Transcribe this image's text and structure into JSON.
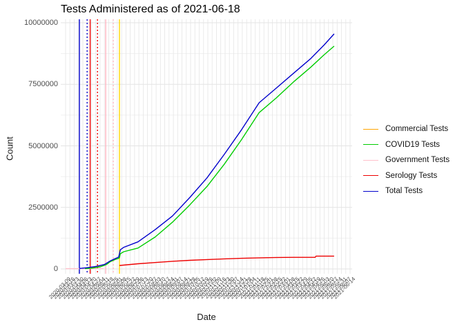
{
  "title": "Tests Administered as of 2021-06-18",
  "colors": {
    "background": "#FFFFFF",
    "grid_major": "#E3E3E3",
    "grid_minor": "#F0F0F0",
    "grid_vertical": "#E5E5E5",
    "axis_text": "#4D4D4D",
    "title_text": "#000000",
    "commercial": "#FFA500",
    "covid19": "#00CD00",
    "government": "#FFC0CB",
    "serology": "#EE0000",
    "total": "#0000CC",
    "vline_gold": "#FFD700"
  },
  "legend": {
    "items": [
      {
        "label": "Commercial Tests",
        "color": "#FFA500"
      },
      {
        "label": "COVID19 Tests",
        "color": "#00CD00"
      },
      {
        "label": "Government Tests",
        "color": "#FFC0CB"
      },
      {
        "label": "Serology Tests",
        "color": "#EE0000"
      },
      {
        "label": "Total Tests",
        "color": "#0000CC"
      }
    ]
  },
  "chart_data": {
    "type": "line",
    "title": "Tests Administered as of 2021-06-18",
    "xlabel": "Date",
    "ylabel": "Count",
    "ylim": [
      0,
      10000000
    ],
    "grid": "on",
    "legend_position": "right",
    "y_ticks": [
      {
        "label": "0",
        "value": 0
      },
      {
        "label": "2500000",
        "value": 2500000
      },
      {
        "label": "5000000",
        "value": 5000000
      },
      {
        "label": "7500000",
        "value": 7500000
      },
      {
        "label": "10000000",
        "value": 10000000
      }
    ],
    "y_minor": [
      1250000,
      3750000,
      6250000,
      8750000
    ],
    "x_labels": [
      "2020-03-09",
      "2020-03-16",
      "2020-03-23",
      "2020-03-30",
      "2020-04-06",
      "2020-04-13",
      "2020-04-20",
      "2020-04-27",
      "2020-05-04",
      "2020-05-11",
      "2020-05-18",
      "2020-05-25",
      "2020-06-01",
      "2020-06-08",
      "2020-06-15",
      "2020-06-22",
      "2020-06-29",
      "2020-07-06",
      "2020-07-13",
      "2020-07-20",
      "2020-07-27",
      "2020-08-03",
      "2020-08-10",
      "2020-08-17",
      "2020-08-24",
      "2020-08-31",
      "2020-09-07",
      "2020-09-14",
      "2020-09-21",
      "2020-09-28",
      "2020-10-05",
      "2020-10-12",
      "2020-10-19",
      "2020-10-26",
      "2020-11-02",
      "2020-11-09",
      "2020-11-16",
      "2020-11-23",
      "2020-11-30",
      "2020-12-07",
      "2020-12-14",
      "2020-12-21",
      "2020-12-28",
      "2021-01-04",
      "2021-01-11",
      "2021-01-18",
      "2021-01-25",
      "2021-02-01",
      "2021-02-08",
      "2021-02-15",
      "2021-02-22",
      "2021-03-01",
      "2021-03-08",
      "2021-03-15",
      "2021-03-22",
      "2021-03-29",
      "2021-04-05",
      "2021-04-12",
      "2021-04-19",
      "2021-04-26",
      "2021-05-03",
      "2021-05-10",
      "2021-05-17",
      "2021-05-24",
      "2021-05-31",
      "2021-06-07",
      "2021-06-14"
    ],
    "vlines": [
      {
        "x_index": 3.2,
        "color": "#0000CC",
        "style": "solid"
      },
      {
        "x_index": 5.0,
        "color": "#0000CC",
        "style": "dotted"
      },
      {
        "x_index": 5.7,
        "color": "#EE0000",
        "style": "solid"
      },
      {
        "x_index": 7.4,
        "color": "#EE0000",
        "style": "dotted"
      },
      {
        "x_index": 9.3,
        "color": "#FFB6C1",
        "style": "solid"
      },
      {
        "x_index": 11.05,
        "color": "#FFB6C1",
        "style": "dotted"
      },
      {
        "x_index": 12.5,
        "color": "#FFD700",
        "style": "solid"
      }
    ],
    "series": [
      {
        "name": "Government Tests",
        "color": "#FFC0CB",
        "points": [
          [
            0,
            10000
          ],
          [
            8.8,
            10000
          ]
        ]
      },
      {
        "name": "Commercial Tests",
        "color": "#FFA500",
        "points": [
          [
            4.8,
            30000
          ],
          [
            7,
            80000
          ],
          [
            8.8,
            170000
          ]
        ]
      },
      {
        "name": "COVID19 Tests",
        "color": "#00CD00",
        "points": [
          [
            4.5,
            10000
          ],
          [
            6,
            30000
          ],
          [
            8,
            80000
          ],
          [
            9.5,
            180000
          ],
          [
            10.4,
            300000
          ],
          [
            11.5,
            380000
          ],
          [
            12.3,
            430000
          ],
          [
            12.5,
            450000
          ],
          [
            12.7,
            620000
          ],
          [
            13.5,
            700000
          ],
          [
            16.8,
            850000
          ],
          [
            20.8,
            1300000
          ],
          [
            24.8,
            1900000
          ],
          [
            28.8,
            2600000
          ],
          [
            32.8,
            3350000
          ],
          [
            36.8,
            4250000
          ],
          [
            40.8,
            5250000
          ],
          [
            44.9,
            6350000
          ],
          [
            48.9,
            6950000
          ],
          [
            52.9,
            7600000
          ],
          [
            56.9,
            8200000
          ],
          [
            60,
            8700000
          ],
          [
            62.3,
            9050000
          ]
        ]
      },
      {
        "name": "Serology Tests",
        "color": "#EE0000",
        "points": [
          [
            12.5,
            140000
          ],
          [
            16.8,
            210000
          ],
          [
            20.8,
            260000
          ],
          [
            24.8,
            310000
          ],
          [
            28.8,
            350000
          ],
          [
            32.8,
            380000
          ],
          [
            36.8,
            410000
          ],
          [
            40.8,
            430000
          ],
          [
            44.9,
            450000
          ],
          [
            48.9,
            465000
          ],
          [
            52.9,
            470000
          ],
          [
            57.9,
            470000
          ],
          [
            58.1,
            520000
          ],
          [
            62.3,
            520000
          ]
        ]
      },
      {
        "name": "Total Tests",
        "color": "#0000CC",
        "points": [
          [
            3.2,
            20000
          ],
          [
            5,
            50000
          ],
          [
            7,
            100000
          ],
          [
            9,
            180000
          ],
          [
            10.4,
            330000
          ],
          [
            11.5,
            420000
          ],
          [
            12.3,
            480000
          ],
          [
            12.7,
            780000
          ],
          [
            13.5,
            880000
          ],
          [
            16.8,
            1100000
          ],
          [
            20.8,
            1600000
          ],
          [
            24.8,
            2150000
          ],
          [
            28.8,
            2900000
          ],
          [
            32.8,
            3700000
          ],
          [
            36.8,
            4650000
          ],
          [
            40.8,
            5650000
          ],
          [
            44.9,
            6750000
          ],
          [
            48.9,
            7350000
          ],
          [
            52.9,
            7950000
          ],
          [
            56.9,
            8550000
          ],
          [
            60,
            9100000
          ],
          [
            62.3,
            9550000
          ]
        ]
      }
    ]
  }
}
